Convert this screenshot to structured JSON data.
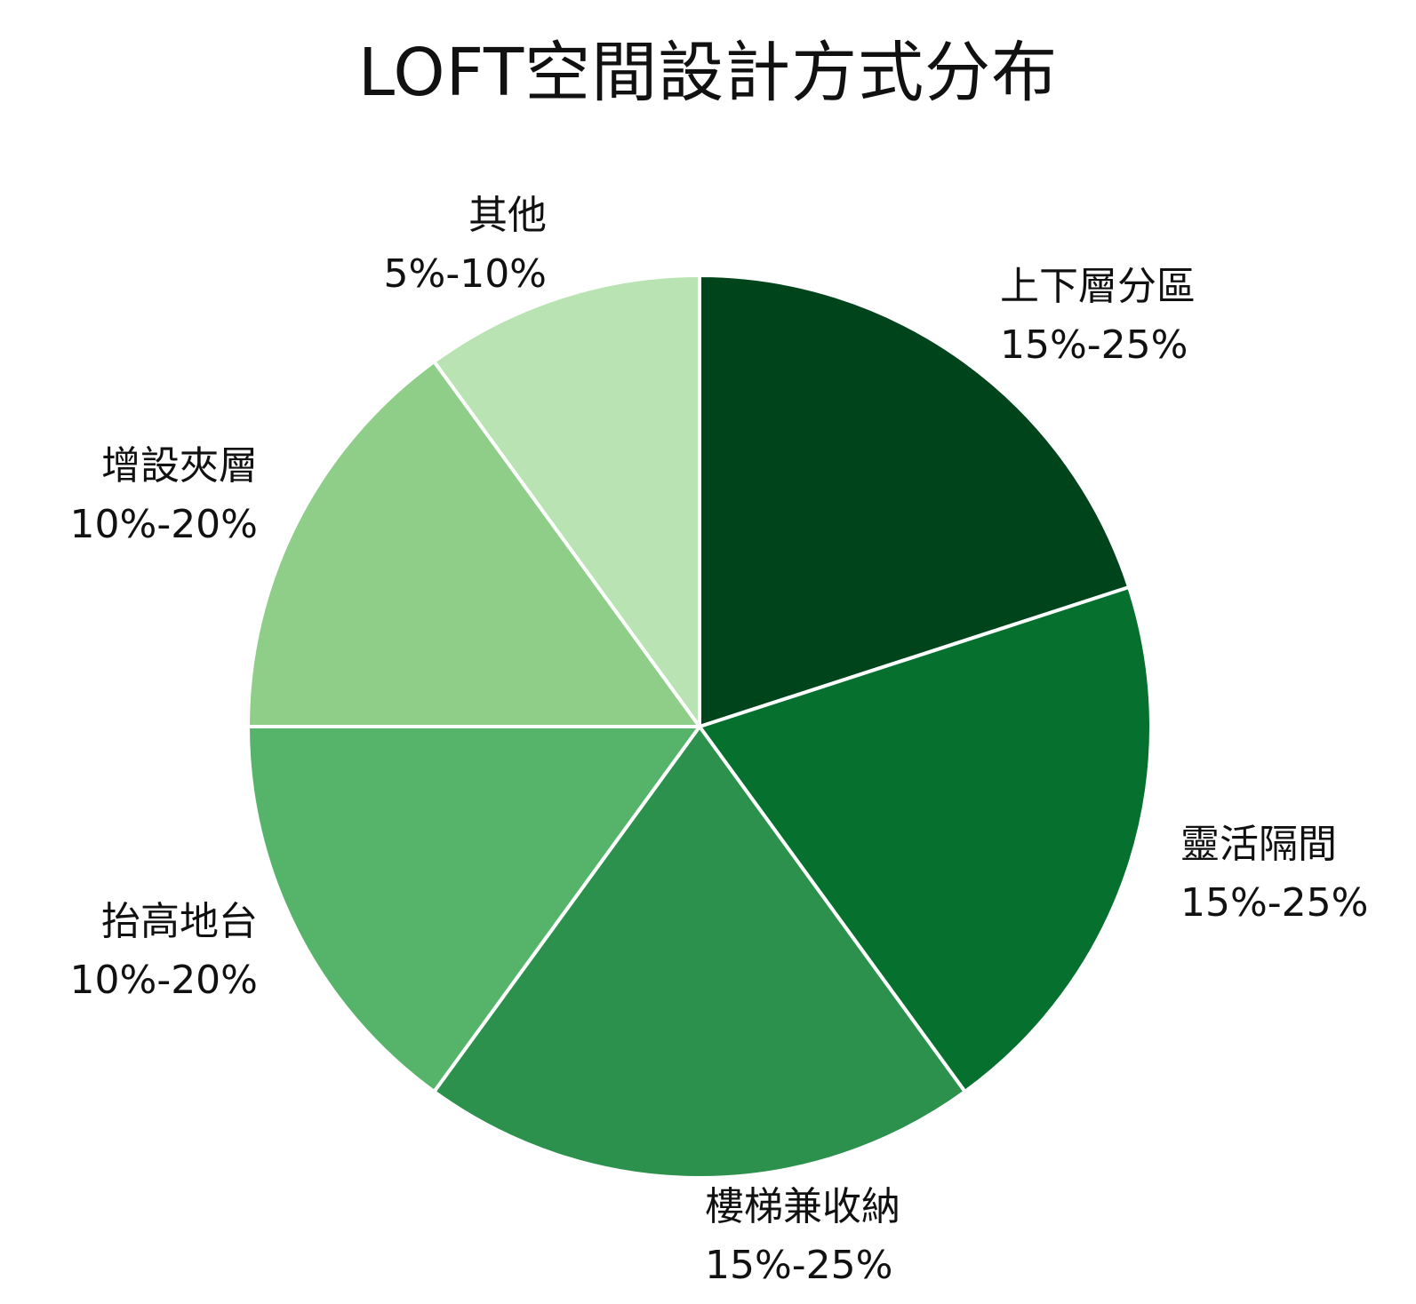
{
  "chart_data": {
    "type": "pie",
    "title": "LOFT空間設計方式分布",
    "slices": [
      {
        "name": "上下層分區",
        "range": "15%-25%",
        "value": 20,
        "color": "#00441b"
      },
      {
        "name": "靈活隔間",
        "range": "15%-25%",
        "value": 20,
        "color": "#06712f"
      },
      {
        "name": "樓梯兼收納",
        "range": "15%-25%",
        "value": 20,
        "color": "#2c914c"
      },
      {
        "name": "抬高地台",
        "range": "10%-20%",
        "value": 15,
        "color": "#56b46a"
      },
      {
        "name": "增設夾層",
        "range": "10%-20%",
        "value": 15,
        "color": "#8ece88"
      },
      {
        "name": "其他",
        "range": "5%-10%",
        "value": 10,
        "color": "#b9e3b2"
      }
    ]
  }
}
